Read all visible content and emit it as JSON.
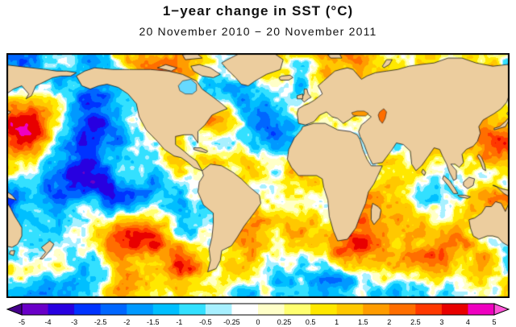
{
  "title": "1−year change in SST (°C)",
  "subtitle": "20 November 2010 − 20 November 2011",
  "map": {
    "land_color": "#eccd9e",
    "coast_color": "#1a1a1a",
    "border_color": "#000000",
    "hudson_bay_color": "#66d9ff",
    "black_sea_color": "#ff9900",
    "caspian_color": "#ff6e00"
  },
  "colorbar": {
    "tick_labels": [
      "-5",
      "-4",
      "-3",
      "-2.5",
      "-2",
      "-1.5",
      "-1",
      "-0.5",
      "-0.25",
      "0",
      "0.25",
      "0.5",
      "1",
      "1.5",
      "2",
      "2.5",
      "3",
      "4",
      "5"
    ],
    "tick_values": [
      -5,
      -4,
      -3,
      -2.5,
      -2,
      -1.5,
      -1,
      -0.5,
      -0.25,
      0,
      0.25,
      0.5,
      1,
      1.5,
      2,
      2.5,
      3,
      4,
      5
    ],
    "segment_colors": [
      "#6a00c8",
      "#2800e0",
      "#0033ff",
      "#0066ff",
      "#0099ff",
      "#00bfff",
      "#33e0ff",
      "#a8f0ff",
      "#ffffff",
      "#ffffc8",
      "#ffff70",
      "#ffe800",
      "#ffc800",
      "#ff9c00",
      "#ff6e00",
      "#ff3800",
      "#e80000",
      "#ef00c0"
    ],
    "below_min_color": "#46008c",
    "above_max_color": "#ff55d8",
    "units": "°C"
  }
}
